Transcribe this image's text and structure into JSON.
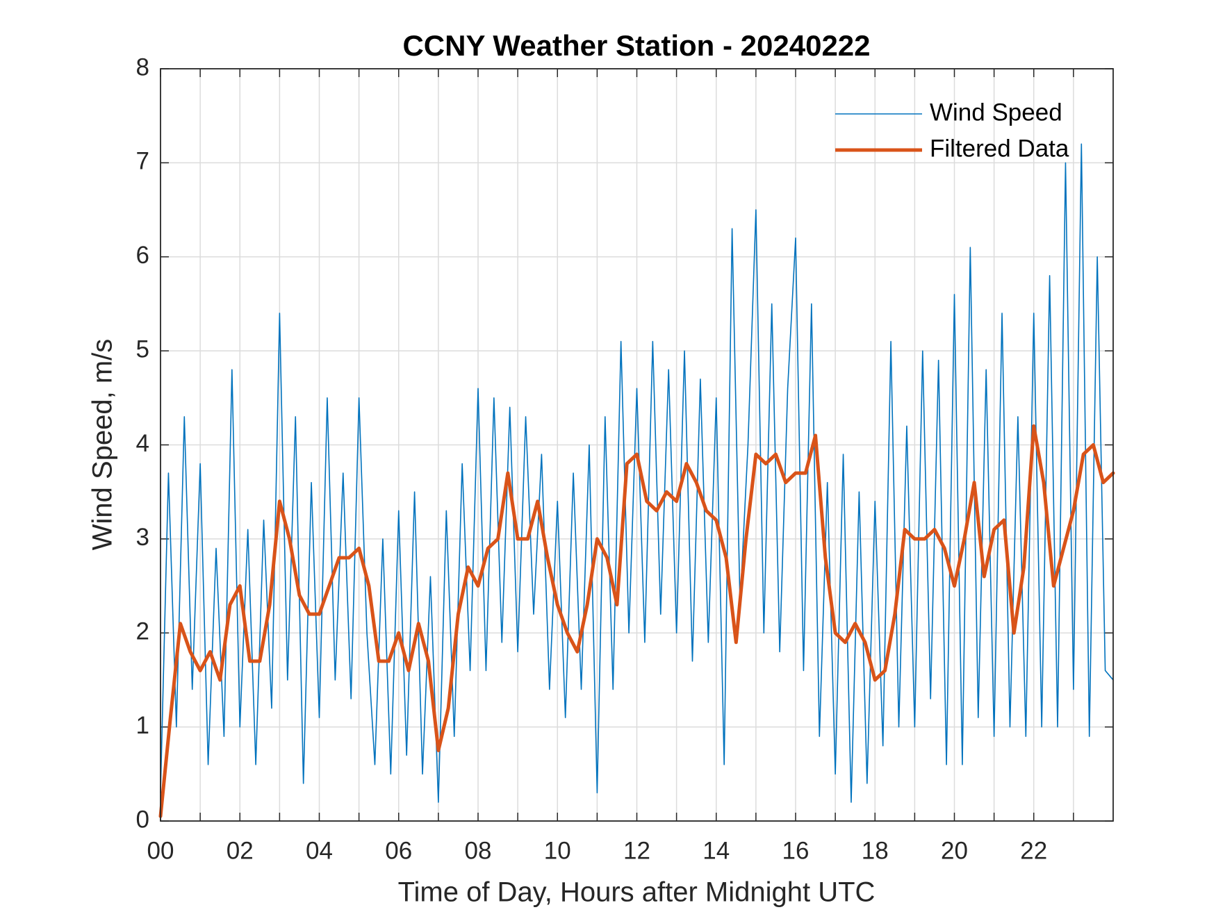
{
  "chart_data": {
    "type": "line",
    "title": "CCNY Weather Station - 20240222",
    "xlabel": "Time of Day, Hours after Midnight UTC",
    "ylabel": "Wind Speed, m/s",
    "xlim": [
      0,
      24
    ],
    "ylim": [
      0,
      8
    ],
    "xticks": [
      {
        "value": 0,
        "label": "00"
      },
      {
        "value": 2,
        "label": "02"
      },
      {
        "value": 4,
        "label": "04"
      },
      {
        "value": 6,
        "label": "06"
      },
      {
        "value": 8,
        "label": "08"
      },
      {
        "value": 10,
        "label": "10"
      },
      {
        "value": 12,
        "label": "12"
      },
      {
        "value": 14,
        "label": "14"
      },
      {
        "value": 16,
        "label": "16"
      },
      {
        "value": 18,
        "label": "18"
      },
      {
        "value": 20,
        "label": "20"
      },
      {
        "value": 22,
        "label": "22"
      }
    ],
    "xminorticks": [
      1,
      3,
      5,
      7,
      9,
      11,
      13,
      15,
      17,
      19,
      21,
      23
    ],
    "yticks": [
      0,
      1,
      2,
      3,
      4,
      5,
      6,
      7,
      8
    ],
    "grid": true,
    "legend": "upper right",
    "series": [
      {
        "name": "Wind Speed",
        "color": "#0072BD",
        "x": [
          0,
          0.2,
          0.4,
          0.6,
          0.8,
          1,
          1.2,
          1.4,
          1.6,
          1.8,
          2,
          2.2,
          2.4,
          2.6,
          2.8,
          3,
          3.2,
          3.4,
          3.6,
          3.8,
          4,
          4.2,
          4.4,
          4.6,
          4.8,
          5,
          5.2,
          5.4,
          5.6,
          5.8,
          6,
          6.2,
          6.4,
          6.6,
          6.8,
          7,
          7.2,
          7.4,
          7.6,
          7.8,
          8,
          8.2,
          8.4,
          8.6,
          8.8,
          9,
          9.2,
          9.4,
          9.6,
          9.8,
          10,
          10.2,
          10.4,
          10.6,
          10.8,
          11,
          11.2,
          11.4,
          11.6,
          11.8,
          12,
          12.2,
          12.4,
          12.6,
          12.8,
          13,
          13.2,
          13.4,
          13.6,
          13.8,
          14,
          14.2,
          14.4,
          14.6,
          14.8,
          15,
          15.2,
          15.4,
          15.6,
          15.8,
          16,
          16.2,
          16.4,
          16.6,
          16.8,
          17,
          17.2,
          17.4,
          17.6,
          17.8,
          18,
          18.2,
          18.4,
          18.6,
          18.8,
          19,
          19.2,
          19.4,
          19.6,
          19.8,
          20,
          20.2,
          20.4,
          20.6,
          20.8,
          21,
          21.2,
          21.4,
          21.6,
          21.8,
          22,
          22.2,
          22.4,
          22.6,
          22.8,
          23,
          23.2,
          23.4,
          23.6,
          23.8,
          24
        ],
        "values": [
          0.3,
          3.7,
          1.0,
          4.3,
          1.4,
          3.8,
          0.6,
          2.9,
          0.9,
          4.8,
          1.0,
          3.1,
          0.6,
          3.2,
          1.2,
          5.4,
          1.5,
          4.3,
          0.4,
          3.6,
          1.1,
          4.5,
          1.5,
          3.7,
          1.3,
          4.5,
          2.0,
          0.6,
          3.0,
          0.5,
          3.3,
          0.7,
          3.5,
          0.5,
          2.6,
          0.2,
          3.3,
          0.9,
          3.8,
          1.6,
          4.6,
          1.6,
          4.5,
          1.9,
          4.4,
          1.8,
          4.3,
          2.2,
          3.9,
          1.4,
          3.4,
          1.1,
          3.7,
          1.4,
          4.0,
          0.3,
          4.3,
          1.4,
          5.1,
          2.0,
          4.6,
          1.9,
          5.1,
          2.2,
          4.8,
          2.0,
          5.0,
          1.7,
          4.7,
          1.9,
          4.5,
          0.6,
          6.3,
          2.3,
          4.0,
          6.5,
          2.0,
          5.5,
          1.8,
          4.6,
          6.2,
          1.6,
          5.5,
          0.9,
          3.6,
          0.5,
          3.9,
          0.2,
          3.5,
          0.4,
          3.4,
          0.8,
          5.1,
          1.0,
          4.2,
          1.0,
          5.0,
          1.3,
          4.9,
          0.6,
          5.6,
          0.6,
          6.1,
          1.1,
          4.8,
          0.9,
          5.4,
          1.0,
          4.3,
          0.9,
          5.4,
          1.0,
          5.8,
          1.0,
          7.0,
          1.4,
          7.2,
          0.9,
          6.0,
          1.6,
          1.5
        ]
      },
      {
        "name": "Filtered Data",
        "color": "#D95319",
        "x": [
          0,
          0.25,
          0.5,
          0.75,
          1,
          1.25,
          1.5,
          1.75,
          2,
          2.25,
          2.5,
          2.75,
          3,
          3.25,
          3.5,
          3.75,
          4,
          4.25,
          4.5,
          4.75,
          5,
          5.25,
          5.5,
          5.75,
          6,
          6.25,
          6.5,
          6.75,
          7,
          7.25,
          7.5,
          7.75,
          8,
          8.25,
          8.5,
          8.75,
          9,
          9.25,
          9.5,
          9.75,
          10,
          10.25,
          10.5,
          10.75,
          11,
          11.25,
          11.5,
          11.75,
          12,
          12.25,
          12.5,
          12.75,
          13,
          13.25,
          13.5,
          13.75,
          14,
          14.25,
          14.5,
          14.75,
          15,
          15.25,
          15.5,
          15.75,
          16,
          16.25,
          16.5,
          16.75,
          17,
          17.25,
          17.5,
          17.75,
          18,
          18.25,
          18.5,
          18.75,
          19,
          19.25,
          19.5,
          19.75,
          20,
          20.25,
          20.5,
          20.75,
          21,
          21.25,
          21.5,
          21.75,
          22,
          22.25,
          22.5,
          22.75,
          23,
          23.25,
          23.5,
          23.75,
          24
        ],
        "values": [
          0.05,
          1.1,
          2.1,
          1.8,
          1.6,
          1.8,
          1.5,
          2.3,
          2.5,
          1.7,
          1.7,
          2.3,
          3.4,
          3.0,
          2.4,
          2.2,
          2.2,
          2.5,
          2.8,
          2.8,
          2.9,
          2.5,
          1.7,
          1.7,
          2.0,
          1.6,
          2.1,
          1.7,
          0.75,
          1.2,
          2.2,
          2.7,
          2.5,
          2.9,
          3.0,
          3.7,
          3.0,
          3.0,
          3.4,
          2.8,
          2.3,
          2.0,
          1.8,
          2.3,
          3.0,
          2.8,
          2.3,
          3.8,
          3.9,
          3.4,
          3.3,
          3.5,
          3.4,
          3.8,
          3.6,
          3.3,
          3.2,
          2.8,
          1.9,
          3.0,
          3.9,
          3.8,
          3.9,
          3.6,
          3.7,
          3.7,
          4.1,
          2.8,
          2.0,
          1.9,
          2.1,
          1.9,
          1.5,
          1.6,
          2.2,
          3.1,
          3.0,
          3.0,
          3.1,
          2.9,
          2.5,
          3.0,
          3.6,
          2.6,
          3.1,
          3.2,
          2.0,
          2.7,
          4.2,
          3.6,
          2.5,
          2.9,
          3.3,
          3.9,
          4.0,
          3.6,
          3.7
        ]
      }
    ]
  }
}
